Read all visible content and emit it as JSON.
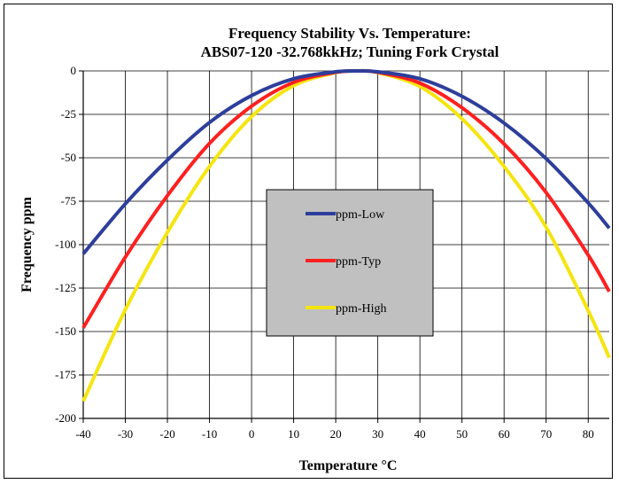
{
  "chart_data": {
    "type": "line",
    "title_lines": [
      "Frequency Stability Vs. Temperature:",
      "ABS07-120 -32.768kkHz; Tuning Fork Crystal"
    ],
    "xlabel": "Temperature °C",
    "ylabel": "Frequency ppm",
    "xlim": [
      -40,
      85
    ],
    "ylim": [
      -200,
      0
    ],
    "x_ticks": [
      -40,
      -30,
      -20,
      -10,
      0,
      10,
      20,
      30,
      40,
      50,
      60,
      70,
      80
    ],
    "y_ticks": [
      0,
      -25,
      -50,
      -75,
      -100,
      -125,
      -150,
      -175,
      -200
    ],
    "grid": true,
    "legend_position": "center",
    "x": [
      -40,
      -30,
      -20,
      -10,
      0,
      10,
      20,
      25,
      30,
      40,
      50,
      60,
      70,
      80,
      85
    ],
    "series": [
      {
        "name": "ppm-Low",
        "color": "#2d3e9b",
        "values": [
          -105.3,
          -76.5,
          -51.3,
          -29.7,
          -14.2,
          -4.5,
          -0.5,
          0,
          -0.5,
          -4.5,
          -14.6,
          -30.0,
          -50.5,
          -76.0,
          -90.5
        ]
      },
      {
        "name": "ppm-Typ",
        "color": "#ff2020",
        "values": [
          -147.9,
          -107.2,
          -71.8,
          -41.7,
          -20.3,
          -6.6,
          -0.8,
          0,
          -0.8,
          -7.0,
          -21.2,
          -42.0,
          -70.0,
          -106.0,
          -127.0
        ]
      },
      {
        "name": "ppm-High",
        "color": "#f5e50f",
        "values": [
          -190.1,
          -137.4,
          -92.9,
          -55.0,
          -26.3,
          -8.5,
          -1.0,
          0,
          -1.0,
          -9.0,
          -27.5,
          -55.0,
          -90.0,
          -138.0,
          -165.0
        ]
      }
    ]
  }
}
